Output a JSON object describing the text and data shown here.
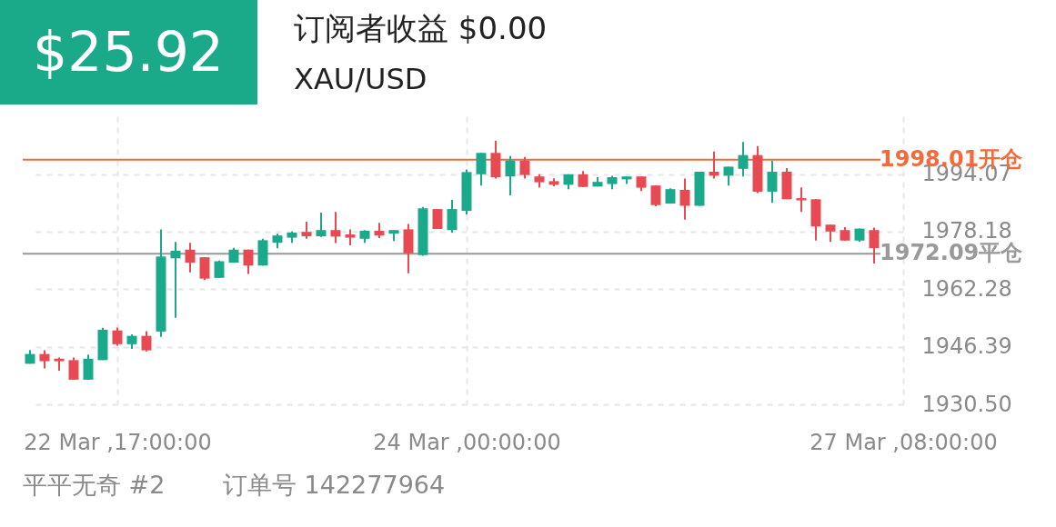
{
  "chart_data": {
    "type": "candlestick",
    "title": "订阅者收益 $0.00",
    "subtitle": "XAU/USD",
    "annotations": [
      "$25.92",
      "平平无奇 #2",
      "订单号 142277964"
    ],
    "categories": [
      null,
      null,
      null,
      null,
      null,
      null,
      "22 Mar ,17:00:00",
      null,
      null,
      null,
      null,
      null,
      null,
      null,
      null,
      null,
      null,
      null,
      null,
      null,
      null,
      null,
      null,
      null,
      null,
      null,
      null,
      null,
      null,
      null,
      "24 Mar ,00:00:00",
      null,
      null,
      null,
      null,
      null,
      null,
      null,
      null,
      null,
      null,
      null,
      null,
      null,
      null,
      null,
      null,
      null,
      null,
      null,
      null,
      null,
      null,
      null,
      null,
      null,
      null,
      null,
      null,
      null,
      "27 Mar ,08:00:00"
    ],
    "ohlc": [
      [
        1941.7,
        1945.5,
        1941.7,
        1944.4
      ],
      [
        1944.4,
        1945.4,
        1940.4,
        1942.4
      ],
      [
        1943.1,
        1943.4,
        1939.8,
        1942.4
      ],
      [
        1942.7,
        1943.4,
        1937.3,
        1937.3
      ],
      [
        1937.3,
        1944.2,
        1937.3,
        1943.1
      ],
      [
        1942.7,
        1951.6,
        1942.7,
        1951.1
      ],
      [
        1950.9,
        1951.7,
        1946.7,
        1947.1
      ],
      [
        1947.1,
        1949.8,
        1945.8,
        1949.4
      ],
      [
        1949.4,
        1950.7,
        1945.1,
        1945.4
      ],
      [
        1950.6,
        1978.8,
        1949.1,
        1971.3
      ],
      [
        1970.8,
        1975.3,
        1954.4,
        1972.9
      ],
      [
        1973.2,
        1975.1,
        1966.9,
        1969.6
      ],
      [
        1971.1,
        1971.1,
        1964.8,
        1965.2
      ],
      [
        1965.4,
        1970.2,
        1965.4,
        1970.0
      ],
      [
        1969.6,
        1973.7,
        1969.6,
        1973.2
      ],
      [
        1973.2,
        1973.2,
        1966.5,
        1968.8
      ],
      [
        1968.8,
        1976.2,
        1968.8,
        1975.8
      ],
      [
        1975.1,
        1977.6,
        1973.6,
        1977.1
      ],
      [
        1976.5,
        1978.2,
        1975.1,
        1977.9
      ],
      [
        1978.1,
        1980.9,
        1976.2,
        1976.9
      ],
      [
        1976.9,
        1983.4,
        1976.7,
        1978.6
      ],
      [
        1978.6,
        1983.6,
        1975.0,
        1976.8
      ],
      [
        1977.4,
        1978.8,
        1974.4,
        1976.5
      ],
      [
        1976.2,
        1978.6,
        1975.1,
        1978.4
      ],
      [
        1978.4,
        1980.6,
        1976.4,
        1977.1
      ],
      [
        1977.6,
        1978.6,
        1975.6,
        1978.6
      ],
      [
        1978.8,
        1980.3,
        1966.7,
        1972.2
      ],
      [
        1971.7,
        1985.0,
        1971.5,
        1984.6
      ],
      [
        1984.4,
        1984.4,
        1978.9,
        1978.9
      ],
      [
        1978.6,
        1986.9,
        1977.9,
        1984.4
      ],
      [
        1983.9,
        1995.3,
        1982.9,
        1994.6
      ],
      [
        1994.0,
        1999.9,
        1990.9,
        1999.9
      ],
      [
        1999.9,
        2003.2,
        1992.8,
        1993.2
      ],
      [
        1993.4,
        1999.0,
        1988.2,
        1997.8
      ],
      [
        1997.8,
        1998.8,
        1992.8,
        1993.8
      ],
      [
        1993.4,
        1994.0,
        1990.3,
        1991.8
      ],
      [
        1992.1,
        1992.9,
        1990.7,
        1991.1
      ],
      [
        1991.1,
        1994.0,
        1989.9,
        1994.0
      ],
      [
        1994.0,
        1994.9,
        1990.5,
        1990.5
      ],
      [
        1990.6,
        1993.2,
        1990.6,
        1991.9
      ],
      [
        1991.3,
        1993.6,
        1989.9,
        1993.2
      ],
      [
        1992.6,
        1993.4,
        1991.3,
        1993.4
      ],
      [
        1993.4,
        1993.4,
        1989.4,
        1990.3
      ],
      [
        1990.9,
        1990.9,
        1985.2,
        1985.5
      ],
      [
        1985.9,
        1990.1,
        1985.9,
        1989.9
      ],
      [
        1989.7,
        1992.8,
        1981.5,
        1985.3
      ],
      [
        1985.3,
        1994.7,
        1985.3,
        1994.7
      ],
      [
        1994.7,
        2000.3,
        1992.8,
        1993.6
      ],
      [
        1993.6,
        1996.1,
        1990.9,
        1996.1
      ],
      [
        1995.5,
        2002.9,
        1993.4,
        1999.3
      ],
      [
        1999.3,
        2001.8,
        1988.8,
        1989.2
      ],
      [
        1989.2,
        1997.8,
        1986.1,
        1994.7
      ],
      [
        1994.7,
        1995.7,
        1987.1,
        1987.1
      ],
      [
        1987.4,
        1990.4,
        1983.6,
        1986.8
      ],
      [
        1987.1,
        1987.1,
        1975.7,
        1979.6
      ],
      [
        1980.1,
        1980.1,
        1975.3,
        1978.2
      ],
      [
        1978.6,
        1979.4,
        1975.7,
        1975.7
      ],
      [
        1975.7,
        1979.0,
        1975.4,
        1979.0
      ],
      [
        1978.6,
        1979.3,
        1969.4,
        1973.6
      ],
      null,
      null
    ],
    "colors": [
      "#1aa98b",
      "#e84a53",
      "#e84a53",
      "#e84a53",
      "#1aa98b",
      "#1aa98b",
      "#e84a53",
      "#1aa98b",
      "#e84a53",
      "#1aa98b",
      "#1aa98b",
      "#e84a53",
      "#e84a53",
      "#1aa98b",
      "#1aa98b",
      "#e84a53",
      "#1aa98b",
      "#1aa98b",
      "#1aa98b",
      "#e84a53",
      "#1aa98b",
      "#e84a53",
      "#e84a53",
      "#1aa98b",
      "#e84a53",
      "#1aa98b",
      "#e84a53",
      "#1aa98b",
      "#e84a53",
      "#1aa98b",
      "#1aa98b",
      "#1aa98b",
      "#e84a53",
      "#1aa98b",
      "#e84a53",
      "#e84a53",
      "#e84a53",
      "#1aa98b",
      "#e84a53",
      "#1aa98b",
      "#1aa98b",
      "#1aa98b",
      "#e84a53",
      "#e84a53",
      "#1aa98b",
      "#e84a53",
      "#1aa98b",
      "#e84a53",
      "#1aa98b",
      "#1aa98b",
      "#e84a53",
      "#1aa98b",
      "#e84a53",
      "#e84a53",
      "#e84a53",
      "#e84a53",
      "#e84a53",
      "#1aa98b",
      "#e84a53",
      null,
      null
    ],
    "ylim": [
      1930.5,
      2010
    ],
    "yticks": [
      {
        "value": 1930.5,
        "label": "1930.50"
      },
      1946.39,
      1962.28,
      1978.18,
      1994.07
    ],
    "ref_lines": [
      {
        "axis": "y",
        "value": 1998.01,
        "label": "1998.01开仓",
        "color": "#f26b3a"
      },
      {
        "axis": "y",
        "value": 1972.09,
        "label": "1972.09平仓",
        "color": "#999999"
      }
    ],
    "grid": true
  }
}
